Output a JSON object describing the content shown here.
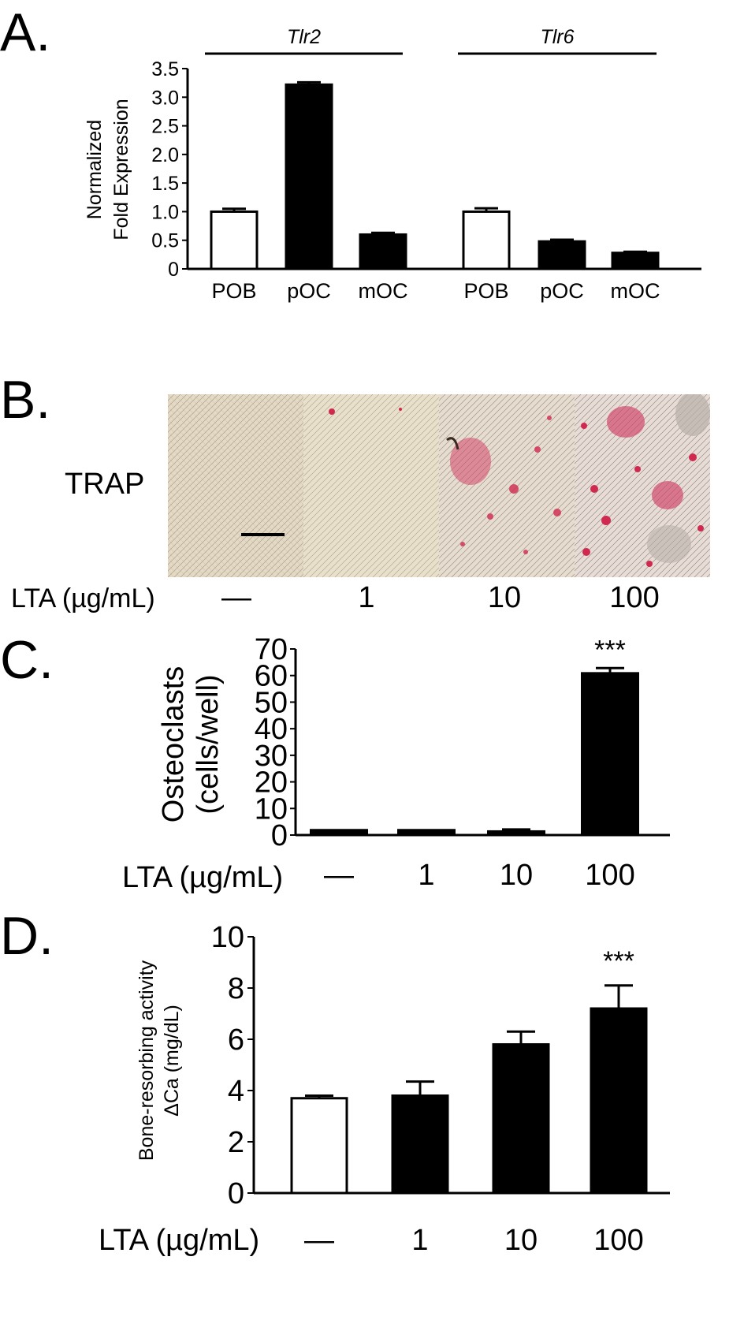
{
  "panels": {
    "a": {
      "letter": "A."
    },
    "b": {
      "letter": "B.",
      "stain_label": "TRAP",
      "treatment_label": "LTA (µg/mL)",
      "conditions": [
        "—",
        "1",
        "10",
        "100"
      ]
    },
    "c": {
      "letter": "C."
    },
    "d": {
      "letter": "D."
    }
  },
  "chart_data": [
    {
      "id": "panel-a",
      "type": "bar",
      "ylabel": [
        "Normalized",
        "Fold Expression"
      ],
      "ylim": [
        0,
        3.5
      ],
      "yticks": [
        0,
        0.5,
        1.0,
        1.5,
        2.0,
        2.5,
        3.0,
        3.5
      ],
      "yticklabels": [
        "0",
        "0.5",
        "1.0",
        "1.5",
        "2.0",
        "2.5",
        "3.0",
        "3.5"
      ],
      "groups": [
        {
          "name": "Tlr2",
          "categories": [
            "POB",
            "pOC",
            "mOC"
          ],
          "values": [
            1.0,
            3.22,
            0.6
          ],
          "errors": [
            0.05,
            0.04,
            0.03
          ],
          "fills": [
            "#ffffff",
            "#000000",
            "#000000"
          ]
        },
        {
          "name": "Tlr6",
          "categories": [
            "POB",
            "pOC",
            "mOC"
          ],
          "values": [
            1.0,
            0.48,
            0.28
          ],
          "errors": [
            0.06,
            0.03,
            0.02
          ],
          "fills": [
            "#ffffff",
            "#000000",
            "#000000"
          ]
        }
      ]
    },
    {
      "id": "panel-c",
      "type": "bar",
      "ylabel": [
        "Osteoclasts",
        "(cells/well)"
      ],
      "xlabel": "LTA (µg/mL)",
      "categories": [
        "—",
        "1",
        "10",
        "100"
      ],
      "values": [
        2,
        2,
        1.5,
        61
      ],
      "errors": [
        0,
        0,
        0.6,
        1.8
      ],
      "annotations": [
        "",
        "",
        "",
        "***"
      ],
      "fills": [
        "#000000",
        "#000000",
        "#000000",
        "#000000"
      ],
      "ylim": [
        0,
        70
      ],
      "yticks": [
        0,
        10,
        20,
        30,
        40,
        50,
        60,
        70
      ]
    },
    {
      "id": "panel-d",
      "type": "bar",
      "ylabel": [
        "Bone-resorbing activity",
        "ΔCa (mg/dL)"
      ],
      "xlabel": "LTA (µg/mL)",
      "categories": [
        "—",
        "1",
        "10",
        "100"
      ],
      "values": [
        3.7,
        3.8,
        5.8,
        7.2
      ],
      "errors": [
        0.1,
        0.55,
        0.5,
        0.9
      ],
      "annotations": [
        "",
        "",
        "",
        "***"
      ],
      "fills": [
        "#ffffff",
        "#000000",
        "#000000",
        "#000000"
      ],
      "ylim": [
        0,
        10
      ],
      "yticks": [
        0,
        2,
        4,
        6,
        8,
        10
      ]
    }
  ]
}
